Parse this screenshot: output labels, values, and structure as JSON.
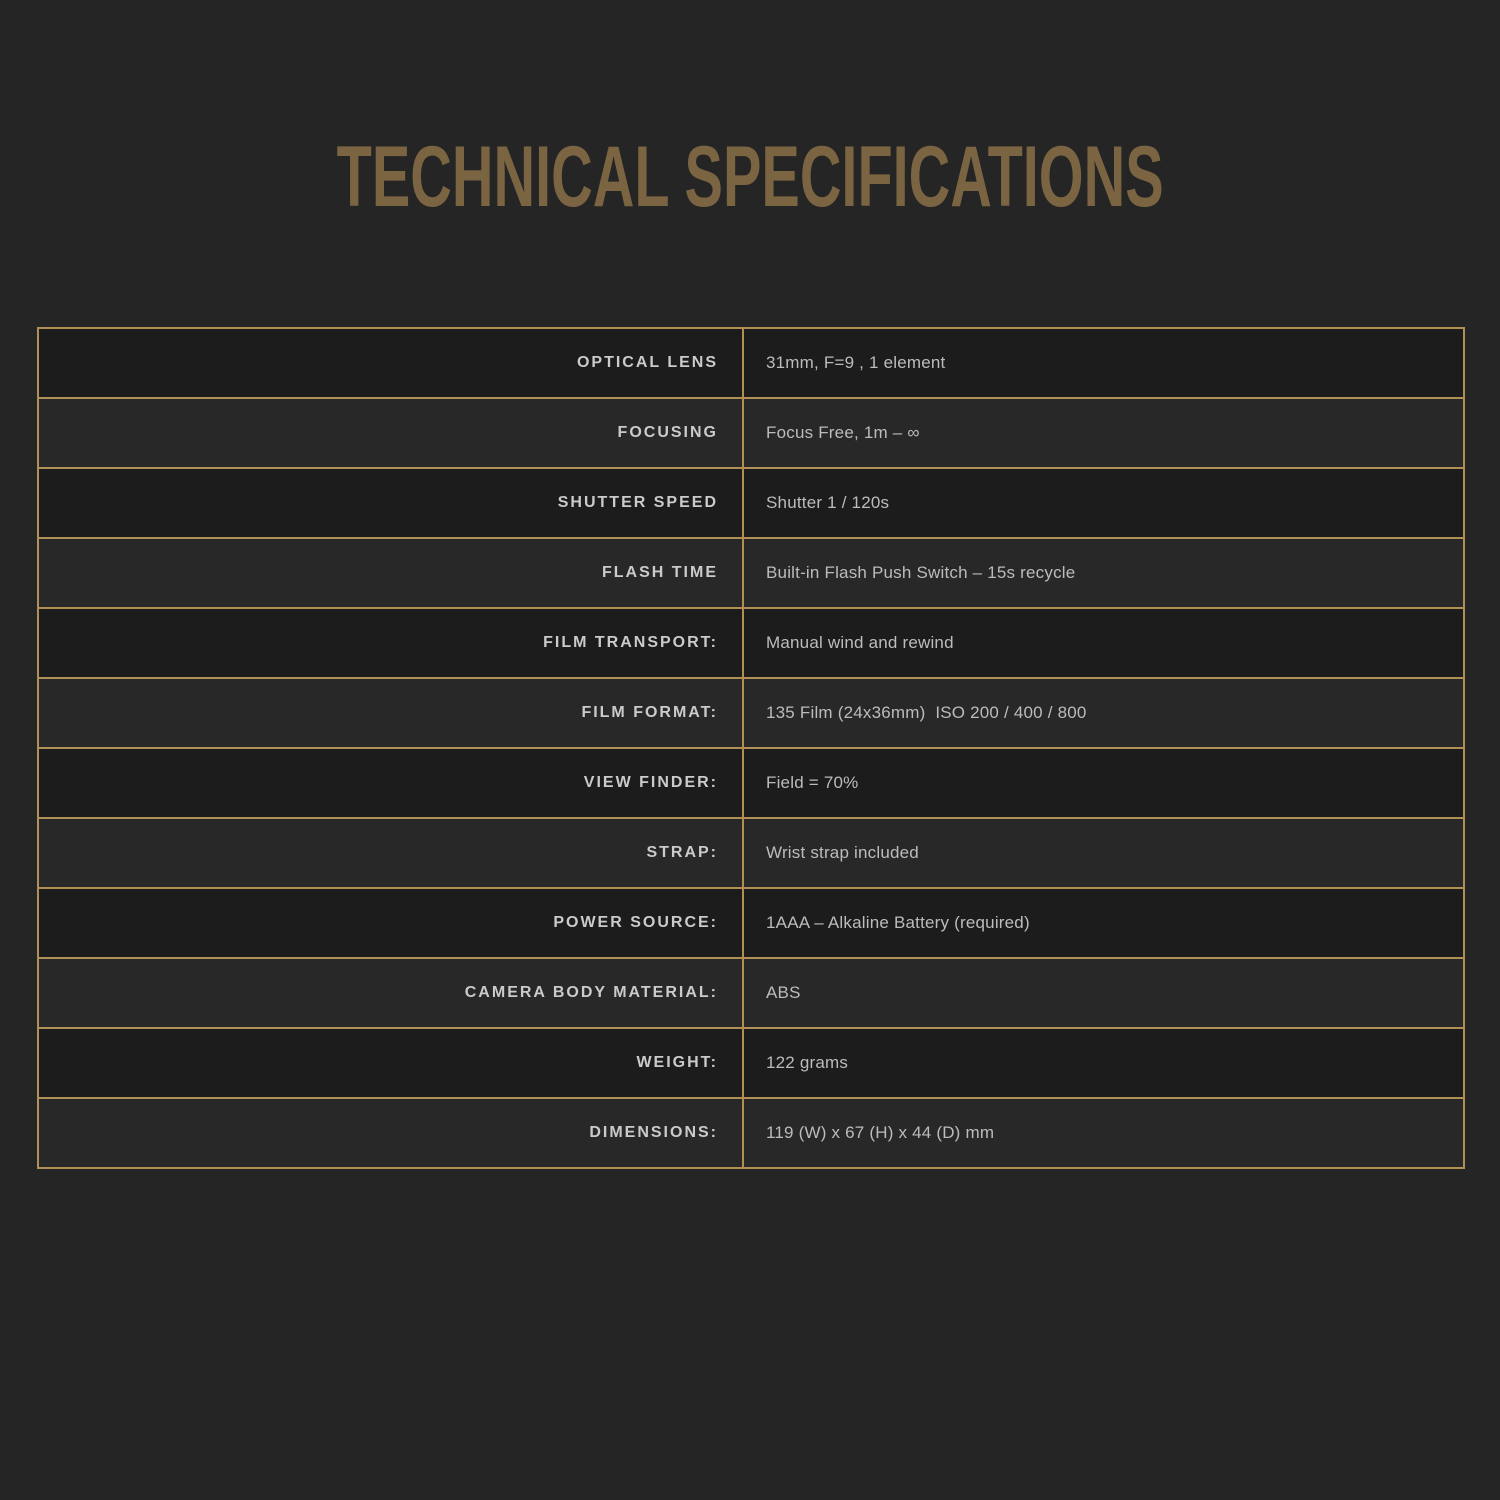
{
  "page": {
    "title": "TECHNICAL SPECIFICATIONS"
  },
  "colors": {
    "background": "#252526",
    "row_dark": "#1c1c1c",
    "row_light": "#282828",
    "border_gold": "#b09055",
    "title_gold": "#7b6441",
    "label_text": "#cbcbcb",
    "value_text": "#bcbcbc"
  },
  "spec_table": {
    "rows": [
      {
        "label": "OPTICAL LENS",
        "value": "31mm, F=9 , 1 element"
      },
      {
        "label": "FOCUSING",
        "value": "Focus Free, 1m – ∞"
      },
      {
        "label": "SHUTTER SPEED",
        "value": "Shutter 1 / 120s"
      },
      {
        "label": "FLASH TIME",
        "value": "Built-in Flash Push Switch – 15s recycle"
      },
      {
        "label": "FILM TRANSPORT:",
        "value": "Manual wind and rewind"
      },
      {
        "label": "FILM FORMAT:",
        "value": "135 Film (24x36mm)  ISO 200 / 400 / 800"
      },
      {
        "label": "VIEW FINDER:",
        "value": "Field = 70%"
      },
      {
        "label": "STRAP:",
        "value": "Wrist strap included"
      },
      {
        "label": "POWER SOURCE:",
        "value": "1AAA – Alkaline Battery (required)"
      },
      {
        "label": "CAMERA BODY MATERIAL:",
        "value": "ABS"
      },
      {
        "label": "WEIGHT:",
        "value": "122 grams"
      },
      {
        "label": "DIMENSIONS:",
        "value": "119 (W) x 67 (H) x 44 (D) mm"
      }
    ]
  }
}
